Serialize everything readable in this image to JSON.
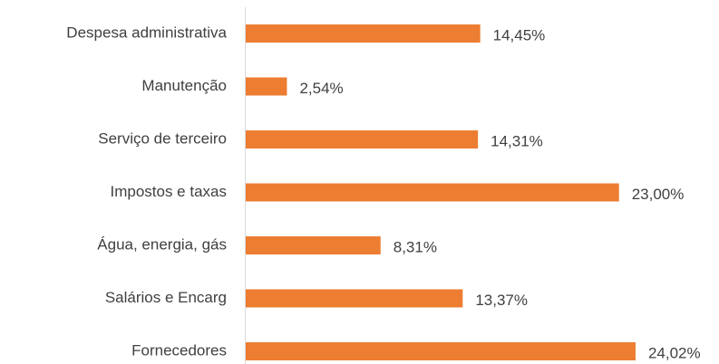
{
  "chart_data": {
    "type": "bar",
    "orientation": "horizontal",
    "categories": [
      "Despesa administrativa",
      "Manutenção",
      "Serviço de terceiro",
      "Impostos e taxas",
      "Água, energia, gás",
      "Salários e Encarg",
      "Fornecedores"
    ],
    "values": [
      14.45,
      2.54,
      14.31,
      23.0,
      8.31,
      13.37,
      24.02
    ],
    "value_labels": [
      "14,45%",
      "2,54%",
      "14,31%",
      "23,00%",
      "8,31%",
      "13,37%",
      "24,02%"
    ],
    "color": "#ed7d31"
  }
}
